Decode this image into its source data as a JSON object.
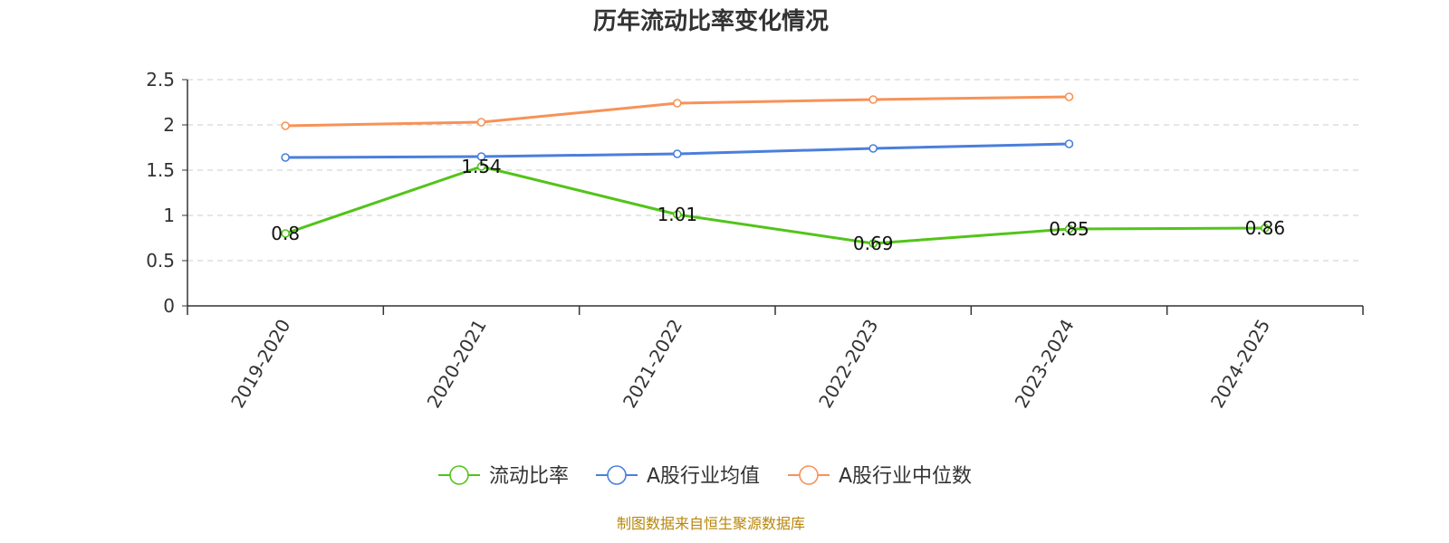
{
  "chart_data": {
    "type": "line",
    "title": "历年流动比率变化情况",
    "categories": [
      "2019-2020",
      "2020-2021",
      "2021-2022",
      "2022-2023",
      "2023-2024",
      "2024-2025"
    ],
    "yticks": [
      "0",
      "0.5",
      "1",
      "1.5",
      "2",
      "2.5"
    ],
    "ylim": [
      0,
      2.5
    ],
    "grid": true,
    "legend_position": "bottom",
    "series": [
      {
        "name": "流动比率",
        "color": "#52c41a",
        "values": [
          0.8,
          1.54,
          1.01,
          0.69,
          0.85,
          0.86
        ],
        "labels": [
          "0.8",
          "1.54",
          "1.01",
          "0.69",
          "0.85",
          "0.86"
        ],
        "show_labels": true
      },
      {
        "name": "A股行业均值",
        "color": "#4a7fdc",
        "values": [
          1.64,
          1.65,
          1.68,
          1.74,
          1.79,
          null
        ],
        "show_labels": false
      },
      {
        "name": "A股行业中位数",
        "color": "#f79257",
        "values": [
          1.99,
          2.03,
          2.24,
          2.28,
          2.31,
          null
        ],
        "show_labels": false
      }
    ]
  },
  "source": "制图数据来自恒生聚源数据库"
}
